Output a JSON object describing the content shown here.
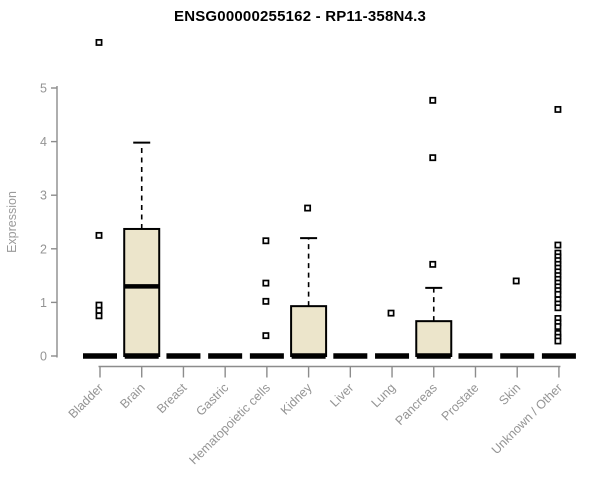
{
  "chart_data": {
    "type": "boxplot",
    "title": "ENSG00000255162 - RP11-358N4.3",
    "xlabel": "",
    "ylabel": "Expression",
    "ylim": [
      0,
      5
    ],
    "yticks": [
      0,
      1,
      2,
      3,
      4,
      5
    ],
    "grid": false,
    "legend": "none",
    "categories": [
      "Bladder",
      "Brain",
      "Breast",
      "Gastric",
      "Hematopoietic cells",
      "Kidney",
      "Liver",
      "Lung",
      "Pancreas",
      "Prostate",
      "Skin",
      "Unknown / Other"
    ],
    "boxes": [
      {
        "category": "Bladder",
        "q1": 0,
        "median": 0,
        "q3": 0,
        "whisker_low": 0,
        "whisker_high": 0,
        "outliers": [
          5.85,
          2.25,
          0.95,
          0.85,
          0.75
        ]
      },
      {
        "category": "Brain",
        "q1": 0,
        "median": 1.3,
        "q3": 2.37,
        "whisker_low": 0,
        "whisker_high": 3.98,
        "outliers": []
      },
      {
        "category": "Breast",
        "q1": 0,
        "median": 0,
        "q3": 0,
        "whisker_low": 0,
        "whisker_high": 0,
        "outliers": []
      },
      {
        "category": "Gastric",
        "q1": 0,
        "median": 0,
        "q3": 0,
        "whisker_low": 0,
        "whisker_high": 0,
        "outliers": []
      },
      {
        "category": "Hematopoietic cells",
        "q1": 0,
        "median": 0,
        "q3": 0,
        "whisker_low": 0,
        "whisker_high": 0,
        "outliers": [
          2.15,
          1.36,
          1.02,
          0.38
        ]
      },
      {
        "category": "Kidney",
        "q1": 0,
        "median": 0,
        "q3": 0.93,
        "whisker_low": 0,
        "whisker_high": 2.2,
        "outliers": [
          2.76
        ]
      },
      {
        "category": "Liver",
        "q1": 0,
        "median": 0,
        "q3": 0,
        "whisker_low": 0,
        "whisker_high": 0,
        "outliers": []
      },
      {
        "category": "Lung",
        "q1": 0,
        "median": 0,
        "q3": 0,
        "whisker_low": 0,
        "whisker_high": 0,
        "outliers": [
          0.8
        ]
      },
      {
        "category": "Pancreas",
        "q1": 0,
        "median": 0,
        "q3": 0.65,
        "whisker_low": 0,
        "whisker_high": 1.27,
        "outliers": [
          4.77,
          3.7,
          1.71
        ]
      },
      {
        "category": "Prostate",
        "q1": 0,
        "median": 0,
        "q3": 0,
        "whisker_low": 0,
        "whisker_high": 0,
        "outliers": []
      },
      {
        "category": "Skin",
        "q1": 0,
        "median": 0,
        "q3": 0,
        "whisker_low": 0,
        "whisker_high": 0,
        "outliers": [
          1.4
        ]
      },
      {
        "category": "Unknown / Other",
        "q1": 0,
        "median": 0,
        "q3": 0,
        "whisker_low": 0,
        "whisker_high": 0,
        "outliers": [
          4.6,
          2.07,
          1.92,
          1.85,
          1.78,
          1.71,
          1.64,
          1.57,
          1.5,
          1.43,
          1.36,
          1.29,
          1.22,
          1.15,
          1.05,
          0.97,
          0.9,
          0.7,
          0.62,
          0.55,
          0.42,
          0.35,
          0.28
        ]
      }
    ],
    "colors": {
      "box_fill": "#ece5cb",
      "box_border": "#000000",
      "median": "#000000",
      "whisker": "#000000",
      "outlier_border": "#000000",
      "outlier_fill": "#ffffff",
      "axis": "#8c8c8c",
      "tick_label": "#949494",
      "title": "#000000",
      "background": "#ffffff"
    }
  }
}
